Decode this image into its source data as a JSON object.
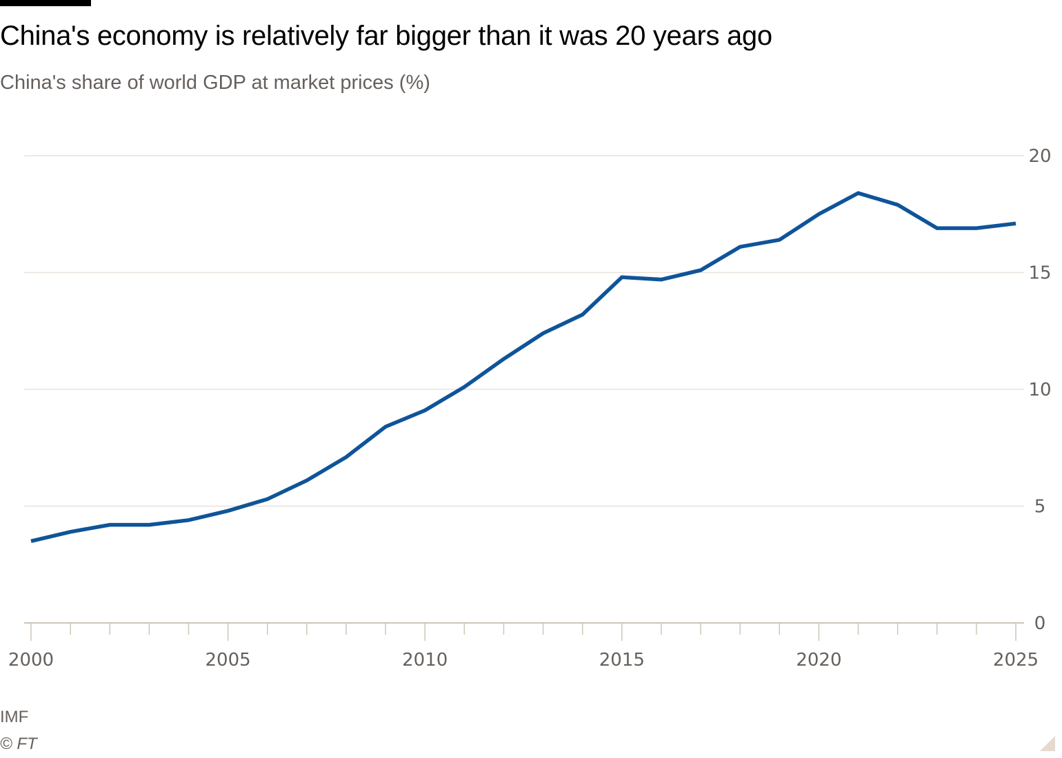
{
  "header": {
    "title": "China's economy is relatively far bigger than it was 20 years ago",
    "subtitle": "China's share of world GDP at market prices (%)"
  },
  "footer": {
    "source": "IMF",
    "copyright": "© FT"
  },
  "colors": {
    "line": "#0f5499",
    "grid": "#e9e2da",
    "axis": "#cec6b9",
    "text": "#66605c"
  },
  "chart_data": {
    "type": "line",
    "title": "China's economy is relatively far bigger than it was 20 years ago",
    "subtitle": "China's share of world GDP at market prices (%)",
    "xlabel": "",
    "ylabel": "",
    "x": [
      2000,
      2001,
      2002,
      2003,
      2004,
      2005,
      2006,
      2007,
      2008,
      2009,
      2010,
      2011,
      2012,
      2013,
      2014,
      2015,
      2016,
      2017,
      2018,
      2019,
      2020,
      2021,
      2022,
      2023,
      2024,
      2025
    ],
    "series": [
      {
        "name": "China's share of world GDP (%)",
        "values": [
          3.5,
          3.9,
          4.2,
          4.2,
          4.4,
          4.8,
          5.3,
          6.1,
          7.1,
          8.4,
          9.1,
          10.1,
          11.3,
          12.4,
          13.2,
          14.8,
          14.7,
          15.1,
          16.1,
          16.4,
          17.5,
          18.4,
          17.9,
          16.9,
          16.9,
          17.1
        ]
      }
    ],
    "xlim": [
      2000,
      2025
    ],
    "ylim": [
      0,
      20
    ],
    "x_ticks": [
      2000,
      2005,
      2010,
      2015,
      2020,
      2025
    ],
    "y_ticks": [
      0,
      5,
      10,
      15,
      20
    ],
    "y_axis_side": "right",
    "grid": true,
    "legend": "none",
    "source": "IMF"
  }
}
